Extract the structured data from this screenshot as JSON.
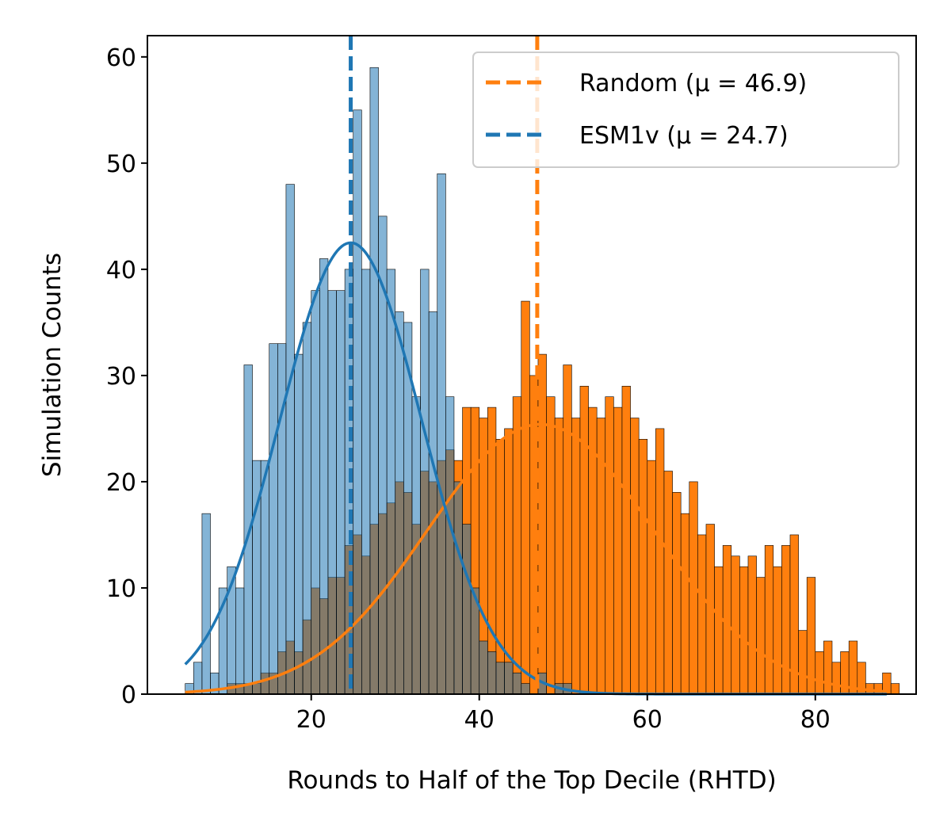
{
  "chart_data": {
    "type": "bar",
    "xlabel": "Rounds to Half of the Top Decile (RHTD)",
    "ylabel": "Simulation Counts",
    "xlim": [
      0.5,
      92
    ],
    "ylim": [
      0,
      62
    ],
    "xticks": [
      20,
      40,
      60,
      80
    ],
    "yticks": [
      0,
      10,
      20,
      30,
      40,
      50,
      60
    ],
    "grid": false,
    "legend_position": "top-right",
    "bin_width": 1,
    "series": [
      {
        "name": "Random",
        "legend_label": "Random (μ = 46.9)",
        "mean": 46.9,
        "color": "#ff7f0e",
        "fill": "#ffbb84",
        "bin_start": 10,
        "counts": [
          1,
          1,
          1,
          1,
          2,
          2,
          4,
          5,
          4,
          7,
          10,
          9,
          11,
          11,
          14,
          15,
          13,
          16,
          17,
          18,
          20,
          19,
          16,
          21,
          20,
          22,
          23,
          22,
          27,
          27,
          26,
          27,
          24,
          25,
          28,
          37,
          30,
          32,
          28,
          26,
          31,
          26,
          29,
          27,
          26,
          28,
          27,
          29,
          26,
          24,
          22,
          25,
          21,
          19,
          17,
          20,
          15,
          16,
          12,
          14,
          13,
          12,
          13,
          11,
          14,
          12,
          14,
          15,
          6,
          11,
          4,
          5,
          3,
          4,
          5,
          3,
          1,
          1,
          2,
          1
        ]
      },
      {
        "name": "ESM1v",
        "legend_label": "ESM1v (μ = 24.7)",
        "mean": 24.7,
        "color": "#1f77b4",
        "fill": "#7fb0d6",
        "bin_start": 5,
        "counts": [
          1,
          3,
          17,
          2,
          10,
          12,
          10,
          31,
          22,
          22,
          33,
          33,
          48,
          32,
          35,
          38,
          41,
          38,
          38,
          40,
          55,
          40,
          59,
          45,
          40,
          36,
          35,
          28,
          40,
          36,
          49,
          28,
          20,
          16,
          10,
          5,
          4,
          3,
          3,
          2,
          1,
          0,
          2,
          0,
          1,
          1
        ]
      }
    ],
    "fit_curves": [
      {
        "name": "Random KDE",
        "mean": 47.3,
        "sd": 13.5,
        "peak": 25.4,
        "x_range": [
          5,
          88.5
        ]
      },
      {
        "name": "ESM1v KDE",
        "mean": 24.7,
        "sd": 8.45,
        "peak": 42.5,
        "x_range": [
          5,
          88.5
        ]
      }
    ]
  }
}
